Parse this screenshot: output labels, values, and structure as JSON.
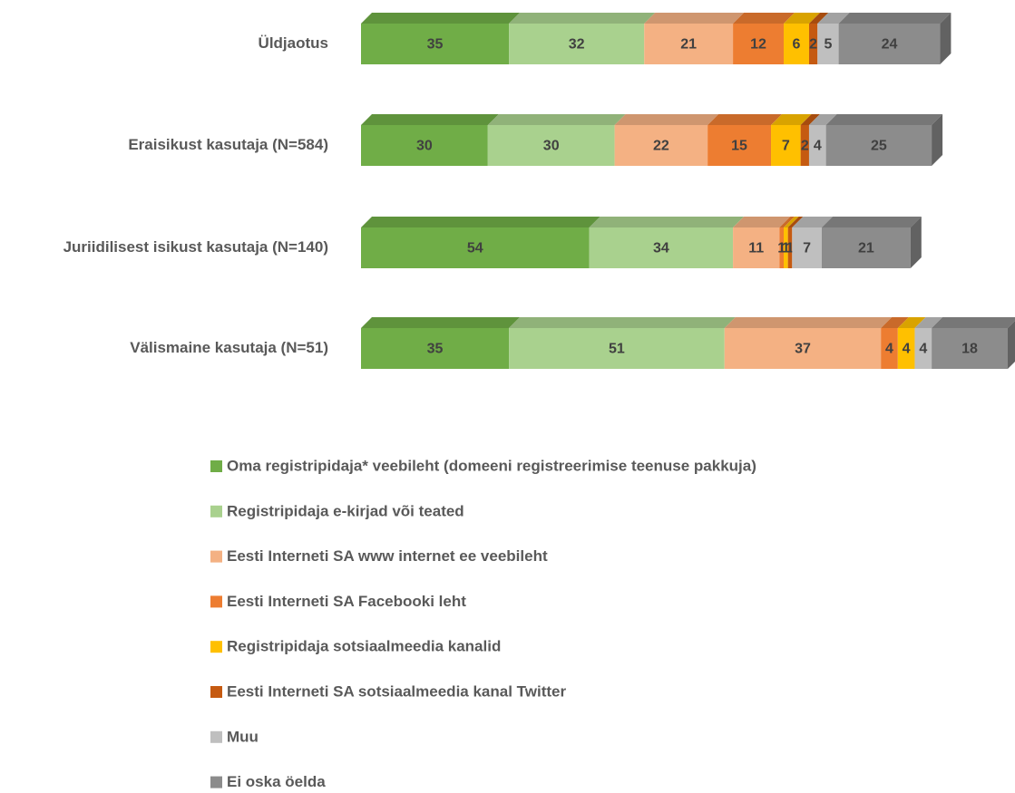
{
  "chart_data": {
    "type": "stacked-bar-3d",
    "orientation": "horizontal",
    "categories": [
      "Üldjaotus",
      "Eraisikust kasutaja (N=584)",
      "Juriidilisest isikust kasutaja (N=140)",
      "Välismaine kasutaja (N=51)"
    ],
    "series": [
      {
        "name": "Oma registripidaja* veebileht (domeeni registreerimise teenuse pakkuja)",
        "color": "#70ad47",
        "values": [
          35,
          30,
          54,
          35
        ]
      },
      {
        "name": "Registripidaja e-kirjad või teated",
        "color": "#a9d18e",
        "values": [
          32,
          30,
          34,
          51
        ]
      },
      {
        "name": "Eesti Interneti SA www internet ee veebileht",
        "color": "#f4b183",
        "values": [
          21,
          22,
          11,
          37
        ]
      },
      {
        "name": "Eesti Interneti SA Facebooki leht",
        "color": "#ed7d31",
        "values": [
          12,
          15,
          1,
          4
        ]
      },
      {
        "name": "Registripidaja sotsiaalmeedia kanalid",
        "color": "#ffc000",
        "values": [
          6,
          7,
          1,
          4
        ]
      },
      {
        "name": "Eesti Interneti SA sotsiaalmeedia kanal Twitter",
        "color": "#c55a11",
        "values": [
          2,
          2,
          1,
          null
        ]
      },
      {
        "name": "Muu",
        "color": "#bfbfbf",
        "values": [
          5,
          4,
          7,
          4
        ]
      },
      {
        "name": "Ei oska öelda",
        "color": "#8c8c8c",
        "values": [
          24,
          25,
          21,
          18
        ]
      }
    ],
    "legend": "bottom"
  }
}
